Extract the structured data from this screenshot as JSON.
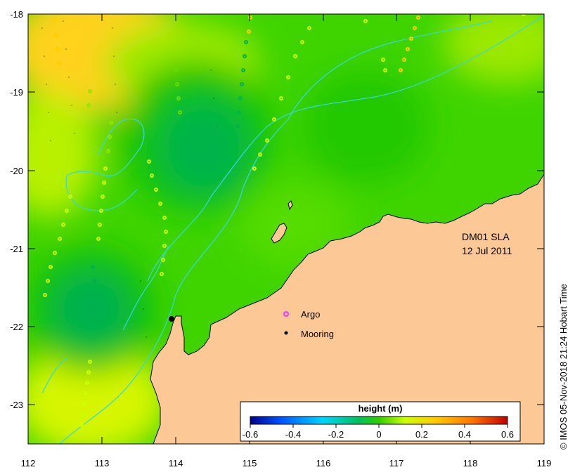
{
  "map": {
    "lon_range": [
      112,
      119
    ],
    "lat_range": [
      -23.5,
      -18
    ],
    "x_ticks": [
      "112",
      "113",
      "114",
      "115",
      "116",
      "117",
      "118",
      "119"
    ],
    "y_ticks": [
      "-18",
      "-19",
      "-20",
      "-21",
      "-22",
      "-23"
    ],
    "product_label": "DM01 SLA",
    "date_label": "12 Jul 2011",
    "legend": {
      "argo_label": "Argo",
      "mooring_label": "Mooring",
      "argo_color": "#ff33ff",
      "mooring_color": "#000000"
    },
    "colorbar": {
      "title": "height (m)",
      "ticks": [
        "-0.6",
        "-0.4",
        "-0.2",
        "0",
        "0.2",
        "0.4",
        "0.6"
      ],
      "range": [
        -0.6,
        0.6
      ],
      "colors": [
        "#00008c",
        "#0055ff",
        "#00d4ff",
        "#00c060",
        "#33cc00",
        "#ccff00",
        "#ffcc00",
        "#ff7700",
        "#c00000"
      ]
    },
    "colors": {
      "land": "#fcc896",
      "ocean_base": "#3fd400",
      "contour_line": "#36d6e8"
    },
    "copyright": "© IMOS 05-Nov-2018 21:24 Hobart Time"
  }
}
